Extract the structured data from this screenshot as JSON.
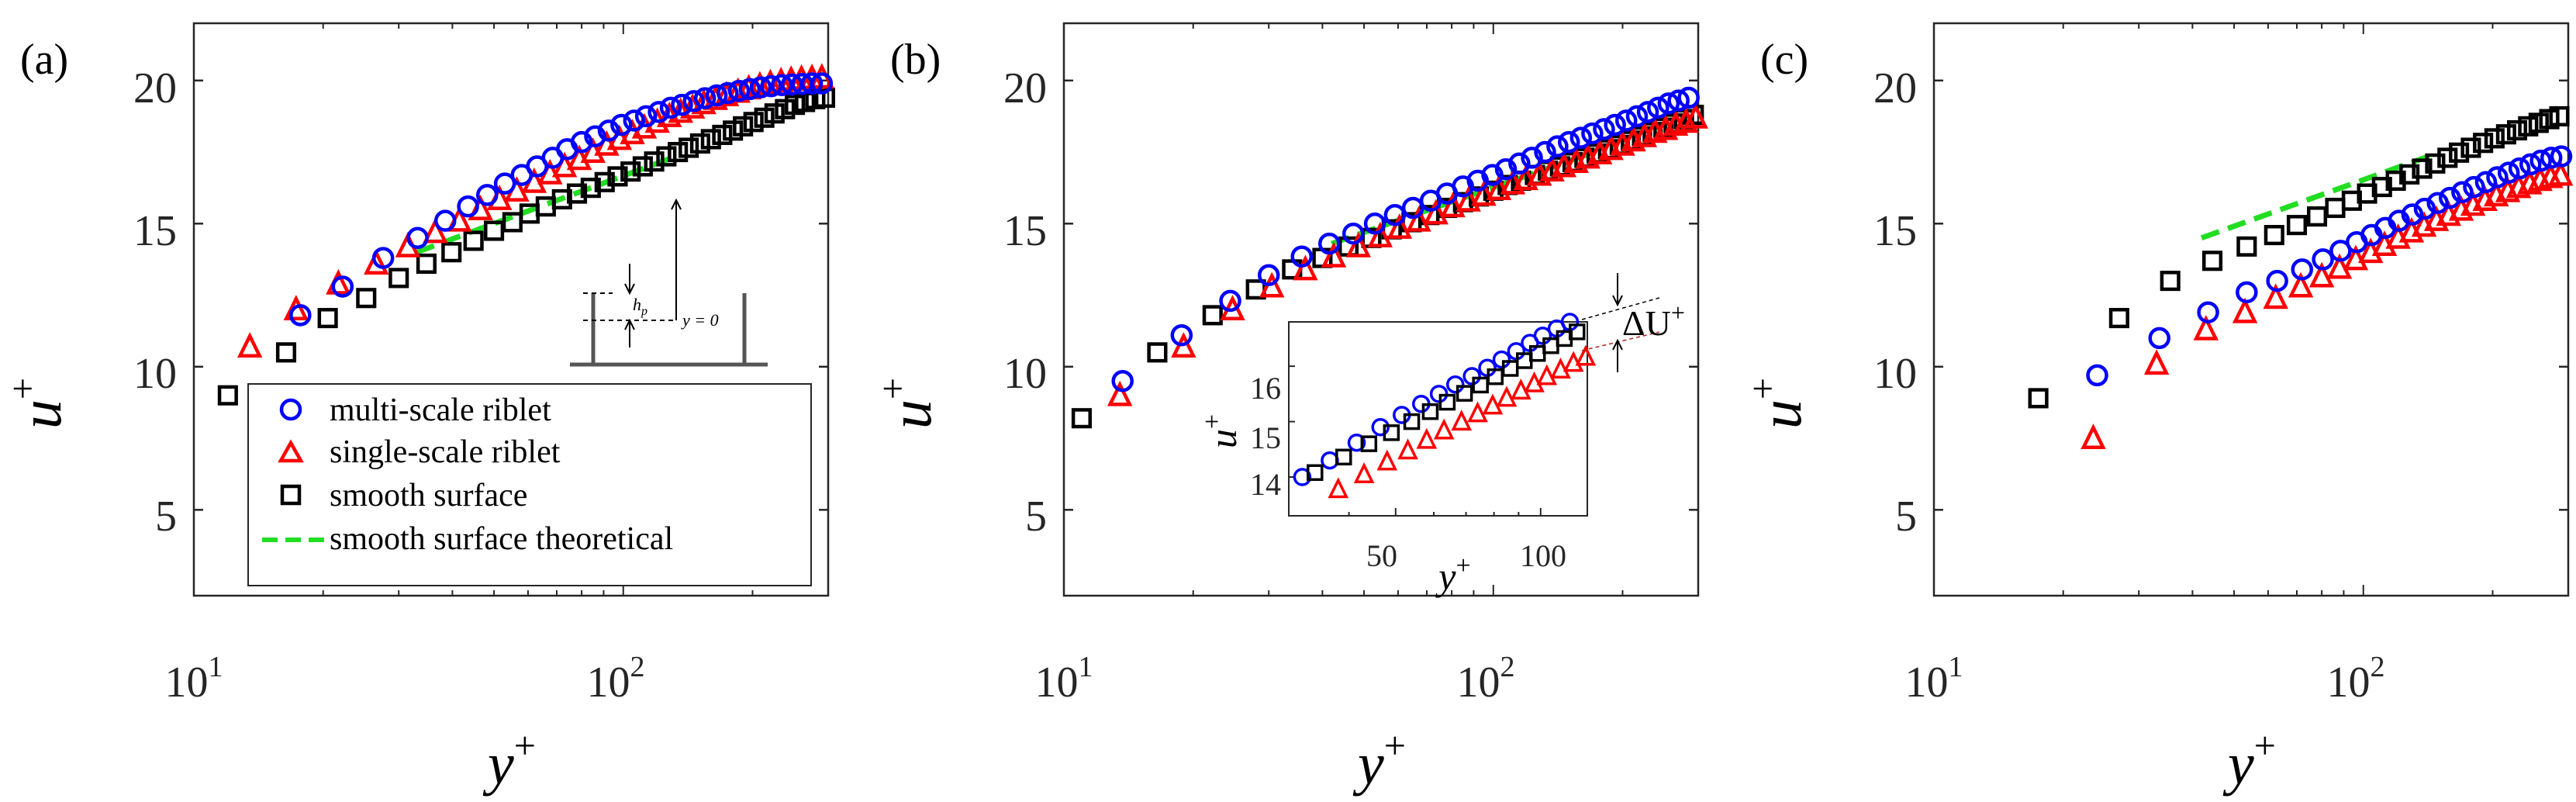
{
  "figure": {
    "colors": {
      "multi": "#0000ff",
      "single": "#ff0000",
      "smooth": "#000000",
      "theory": "#22dd22",
      "axis": "#262626",
      "inset_line": "#b41e1e"
    },
    "legend": {
      "entries": [
        {
          "key": "multi",
          "marker": "circle",
          "label": "multi-scale riblet"
        },
        {
          "key": "single",
          "marker": "triangle",
          "label": "single-scale riblet"
        },
        {
          "key": "smooth",
          "marker": "square",
          "label": "smooth surface"
        },
        {
          "key": "theory",
          "marker": "dashed-line",
          "label": "smooth surface theoretical"
        }
      ]
    },
    "schematic": {
      "h_label": "h",
      "h_sub": "p",
      "y0_label": "y = 0"
    },
    "inset": {
      "xlabel": "y",
      "xlabel_sup": "+",
      "ylabel": "u",
      "ylabel_sup": "+",
      "xticks": [
        "50",
        "100"
      ],
      "yticks": [
        "14",
        "15",
        "16"
      ],
      "delta_label": "ΔU",
      "delta_sup": "+"
    }
  },
  "chart_data": [
    {
      "type": "scatter",
      "panel_label": "(a)",
      "xscale": "log",
      "xlim": [
        10,
        300
      ],
      "ylim": [
        2,
        22
      ],
      "xlabel": "y",
      "xlabel_sup": "+",
      "ylabel": "u",
      "ylabel_sup": "+",
      "xticks": [
        {
          "base": "10",
          "exp": "1",
          "value": 10
        },
        {
          "base": "10",
          "exp": "2",
          "value": 100
        }
      ],
      "yticks": [
        5,
        10,
        15,
        20
      ],
      "series": [
        {
          "name": "multi-scale riblet",
          "key": "multi",
          "marker": "circle",
          "x": [
            17.7,
            22.2,
            27.6,
            33.2,
            38.5,
            43.5,
            48.2,
            53,
            58,
            63,
            68.5,
            74,
            80,
            86,
            92.5,
            99,
            106,
            113,
            121,
            129,
            137,
            146,
            155,
            165,
            175,
            186,
            197,
            209,
            221,
            234,
            247,
            261,
            275,
            290
          ],
          "y": [
            11.8,
            12.8,
            13.8,
            14.5,
            15.1,
            15.6,
            16,
            16.4,
            16.7,
            17,
            17.3,
            17.6,
            17.85,
            18.05,
            18.25,
            18.45,
            18.6,
            18.75,
            18.9,
            19.05,
            19.15,
            19.28,
            19.38,
            19.48,
            19.56,
            19.64,
            19.7,
            19.76,
            19.8,
            19.84,
            19.86,
            19.88,
            19.9,
            19.9
          ]
        },
        {
          "name": "single-scale riblet",
          "key": "single",
          "marker": "triangle",
          "x": [
            13.5,
            17.3,
            21.7,
            26.6,
            31.5,
            36.5,
            41.5,
            46.5,
            51.5,
            56.5,
            62,
            67.5,
            73,
            79,
            85,
            91.5,
            98,
            105,
            112,
            120,
            128,
            136,
            145,
            154,
            164,
            174,
            185,
            196,
            208,
            220,
            233,
            246,
            260,
            275,
            290
          ],
          "y": [
            10.7,
            12,
            12.9,
            13.6,
            14.2,
            14.7,
            15.1,
            15.5,
            15.85,
            16.15,
            16.45,
            16.75,
            17,
            17.25,
            17.5,
            17.75,
            17.95,
            18.15,
            18.35,
            18.55,
            18.75,
            18.9,
            19.05,
            19.2,
            19.35,
            19.48,
            19.6,
            19.72,
            19.82,
            19.9,
            19.97,
            20.02,
            20.06,
            20.08,
            20.1
          ]
        },
        {
          "name": "smooth surface",
          "key": "smooth",
          "marker": "square",
          "x": [
            12,
            16.4,
            20.5,
            25.2,
            30,
            34.8,
            39.8,
            44.8,
            50,
            55.2,
            60.5,
            66,
            72,
            78,
            84,
            90.5,
            97,
            104,
            111,
            118,
            126,
            134,
            142,
            151,
            160,
            170,
            180,
            190,
            201,
            213,
            225,
            238,
            251,
            265,
            280,
            295
          ],
          "y": [
            9,
            10.5,
            11.7,
            12.4,
            13.1,
            13.6,
            14,
            14.4,
            14.75,
            15.05,
            15.35,
            15.6,
            15.85,
            16.05,
            16.25,
            16.45,
            16.65,
            16.82,
            17,
            17.17,
            17.35,
            17.5,
            17.65,
            17.8,
            17.95,
            18.1,
            18.25,
            18.4,
            18.55,
            18.7,
            18.85,
            19,
            19.15,
            19.25,
            19.35,
            19.4
          ]
        },
        {
          "name": "smooth surface theoretical",
          "key": "theory",
          "marker": "dashed-line",
          "x": [
            33,
            130
          ],
          "y": [
            14,
            17.3
          ]
        }
      ]
    },
    {
      "type": "scatter",
      "panel_label": "(b)",
      "xscale": "log",
      "xlim": [
        10,
        300
      ],
      "ylim": [
        2,
        22
      ],
      "xlabel": "y",
      "xlabel_sup": "+",
      "ylabel": "u",
      "ylabel_sup": "+",
      "xticks": [
        {
          "base": "10",
          "exp": "1",
          "value": 10
        },
        {
          "base": "10",
          "exp": "2",
          "value": 100
        }
      ],
      "yticks": [
        5,
        10,
        15,
        20
      ],
      "series": [
        {
          "name": "multi-scale riblet",
          "key": "multi",
          "marker": "circle",
          "x": [
            13.7,
            18.8,
            24.4,
            30,
            35.8,
            41.5,
            47.2,
            53,
            59,
            65,
            71.5,
            78,
            85,
            92,
            99.5,
            107,
            115,
            123,
            132,
            141,
            150,
            160,
            170,
            181,
            192,
            204,
            216,
            229,
            242,
            256,
            270,
            285
          ],
          "y": [
            9.5,
            11.1,
            12.3,
            13.2,
            13.85,
            14.3,
            14.65,
            15,
            15.3,
            15.55,
            15.8,
            16.05,
            16.3,
            16.5,
            16.7,
            16.9,
            17.1,
            17.3,
            17.5,
            17.7,
            17.85,
            18,
            18.15,
            18.3,
            18.45,
            18.6,
            18.75,
            18.9,
            19.05,
            19.2,
            19.3,
            19.4
          ]
        },
        {
          "name": "single-scale riblet",
          "key": "single",
          "marker": "triangle",
          "x": [
            13.5,
            19,
            24.7,
            30.5,
            36.5,
            42.5,
            48.5,
            54.5,
            60.5,
            67,
            73.5,
            80.5,
            87.5,
            95,
            103,
            111,
            119,
            128,
            137,
            146,
            156,
            166,
            177,
            188,
            200,
            212,
            225,
            238,
            252,
            266,
            281,
            296
          ],
          "y": [
            9,
            10.7,
            12,
            12.8,
            13.4,
            13.85,
            14.2,
            14.55,
            14.85,
            15.1,
            15.35,
            15.6,
            15.8,
            16,
            16.2,
            16.4,
            16.55,
            16.7,
            16.85,
            17,
            17.15,
            17.3,
            17.45,
            17.6,
            17.75,
            17.9,
            18.05,
            18.2,
            18.3,
            18.45,
            18.55,
            18.7
          ]
        },
        {
          "name": "smooth surface",
          "key": "smooth",
          "marker": "square",
          "x": [
            11,
            16.5,
            22.2,
            28,
            34,
            40,
            46,
            52,
            58,
            64.5,
            71,
            78,
            85,
            92.5,
            100,
            108,
            116,
            125,
            134,
            143,
            153,
            163,
            174,
            185,
            197,
            209,
            222,
            235,
            249,
            263,
            278,
            293
          ],
          "y": [
            8.2,
            10.5,
            11.8,
            12.7,
            13.4,
            13.8,
            14.2,
            14.5,
            14.8,
            15.05,
            15.3,
            15.55,
            15.75,
            15.95,
            16.15,
            16.35,
            16.5,
            16.7,
            16.85,
            17,
            17.15,
            17.3,
            17.45,
            17.6,
            17.75,
            17.9,
            18.05,
            18.2,
            18.35,
            18.5,
            18.65,
            18.8
          ]
        },
        {
          "name": "smooth surface theoretical",
          "key": "theory",
          "marker": "dashed-line",
          "x": [
            42,
            165
          ],
          "y": [
            14.3,
            17.4
          ]
        }
      ],
      "inset": {
        "xscale": "log",
        "xlim": [
          30,
          125
        ],
        "ylim": [
          13.3,
          16.8
        ],
        "series": [
          {
            "key": "multi",
            "marker": "circle",
            "x": [
              32,
              36.5,
              41.5,
              46.5,
              51.5,
              56.5,
              61.5,
              66.5,
              72,
              77.5,
              83,
              89,
              95,
              101,
              108,
              115
            ],
            "y": [
              14,
              14.3,
              14.62,
              14.9,
              15.12,
              15.32,
              15.5,
              15.67,
              15.82,
              15.97,
              16.12,
              16.27,
              16.42,
              16.55,
              16.68,
              16.8
            ]
          },
          {
            "key": "smooth",
            "marker": "square",
            "x": [
              34,
              39,
              44,
              49,
              54,
              59,
              64,
              69.5,
              75,
              80.5,
              86.5,
              92.5,
              98.5,
              105,
              112,
              119
            ],
            "y": [
              14.08,
              14.36,
              14.6,
              14.8,
              15.0,
              15.18,
              15.35,
              15.51,
              15.66,
              15.81,
              15.96,
              16.1,
              16.23,
              16.37,
              16.5,
              16.62
            ]
          },
          {
            "key": "single",
            "marker": "triangle",
            "x": [
              38,
              43,
              48,
              53,
              58,
              63,
              68.5,
              74,
              79.5,
              85,
              91,
              97,
              103,
              110,
              117,
              124
            ],
            "y": [
              13.78,
              14.05,
              14.28,
              14.48,
              14.67,
              14.84,
              15.0,
              15.15,
              15.29,
              15.43,
              15.56,
              15.69,
              15.82,
              15.94,
              16.06,
              16.17
            ]
          }
        ]
      }
    },
    {
      "type": "scatter",
      "panel_label": "(c)",
      "xscale": "log",
      "xlim": [
        10,
        300
      ],
      "ylim": [
        2,
        22
      ],
      "xlabel": "y",
      "xlabel_sup": "+",
      "ylabel": "u",
      "ylabel_sup": "+",
      "xticks": [
        {
          "base": "10",
          "exp": "1",
          "value": 10
        },
        {
          "base": "10",
          "exp": "2",
          "value": 100
        }
      ],
      "yticks": [
        5,
        10,
        15,
        20
      ],
      "series": [
        {
          "name": "multi-scale riblet",
          "key": "multi",
          "marker": "circle",
          "x": [
            24,
            33.5,
            43.5,
            53.5,
            63,
            72,
            80.5,
            88.5,
            96.5,
            104.5,
            112.5,
            121,
            130,
            139,
            149,
            159,
            170,
            181,
            193,
            205,
            218,
            231,
            245,
            259,
            274,
            289
          ],
          "y": [
            9.7,
            11,
            11.9,
            12.6,
            13,
            13.4,
            13.75,
            14.05,
            14.35,
            14.6,
            14.85,
            15.1,
            15.32,
            15.52,
            15.72,
            15.9,
            16.1,
            16.28,
            16.45,
            16.62,
            16.78,
            16.93,
            17.07,
            17.2,
            17.3,
            17.35
          ]
        },
        {
          "name": "single-scale riblet",
          "key": "single",
          "marker": "triangle",
          "x": [
            23.5,
            33,
            43,
            53,
            62.5,
            71.5,
            80,
            88,
            96,
            104,
            112,
            120.5,
            129.5,
            138.5,
            148,
            158,
            169,
            180,
            192,
            204,
            217,
            230,
            244,
            258,
            273,
            288
          ],
          "y": [
            7.5,
            10.1,
            11.3,
            11.9,
            12.4,
            12.8,
            13.15,
            13.45,
            13.75,
            14.0,
            14.25,
            14.5,
            14.72,
            14.92,
            15.12,
            15.3,
            15.48,
            15.65,
            15.82,
            15.98,
            16.13,
            16.27,
            16.4,
            16.52,
            16.62,
            16.7
          ]
        },
        {
          "name": "smooth surface",
          "key": "smooth",
          "marker": "square",
          "x": [
            17.5,
            27,
            35.5,
            44.5,
            53.5,
            62,
            70,
            78,
            86,
            94,
            102,
            110.5,
            119,
            128,
            137,
            147,
            157,
            167,
            178,
            190,
            202,
            215,
            228,
            242,
            256,
            271,
            286
          ],
          "y": [
            8.9,
            11.7,
            13,
            13.7,
            14.2,
            14.6,
            14.95,
            15.25,
            15.55,
            15.8,
            16.05,
            16.28,
            16.5,
            16.72,
            16.92,
            17.1,
            17.3,
            17.48,
            17.65,
            17.82,
            17.98,
            18.12,
            18.26,
            18.4,
            18.52,
            18.65,
            18.75
          ]
        },
        {
          "name": "smooth surface theoretical",
          "key": "theory",
          "marker": "dashed-line",
          "x": [
            42,
            145
          ],
          "y": [
            14.5,
            17.4
          ]
        }
      ]
    }
  ]
}
